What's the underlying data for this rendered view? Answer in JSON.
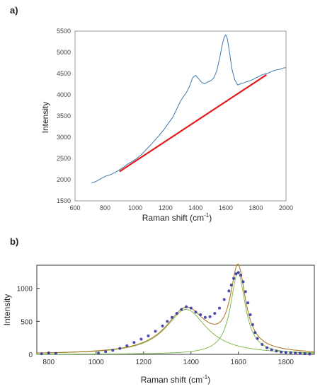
{
  "chart_data": [
    {
      "panel_label": "a)",
      "type": "line",
      "xlabel": "Raman shift (cm",
      "xlabel_sup": "-1",
      "xlabel_end": ")",
      "ylabel": "Intensity",
      "xlim": [
        600,
        2000
      ],
      "ylim": [
        1500,
        5500
      ],
      "xticks": [
        600,
        800,
        1000,
        1200,
        1400,
        1600,
        1800,
        2000
      ],
      "yticks": [
        1500,
        2000,
        2500,
        3000,
        3500,
        4000,
        4500,
        5000,
        5500
      ],
      "grid": false,
      "series": [
        {
          "kind": "spectrum",
          "color": "#3f79b0",
          "x": [
            710,
            740,
            770,
            800,
            830,
            860,
            890,
            920,
            950,
            980,
            1010,
            1040,
            1070,
            1100,
            1130,
            1160,
            1190,
            1220,
            1250,
            1280,
            1300,
            1320,
            1340,
            1360,
            1380,
            1400,
            1420,
            1440,
            1460,
            1480,
            1500,
            1520,
            1540,
            1560,
            1575,
            1590,
            1600,
            1610,
            1625,
            1640,
            1660,
            1680,
            1700,
            1720,
            1740,
            1760,
            1780,
            1800,
            1820,
            1840,
            1860,
            1880,
            1900,
            1920,
            1940,
            1960,
            1980,
            2000
          ],
          "y": [
            1920,
            1960,
            2020,
            2080,
            2110,
            2160,
            2220,
            2290,
            2370,
            2430,
            2500,
            2590,
            2700,
            2810,
            2930,
            3050,
            3180,
            3330,
            3480,
            3700,
            3850,
            3960,
            4060,
            4200,
            4400,
            4460,
            4380,
            4290,
            4260,
            4300,
            4330,
            4390,
            4560,
            4860,
            5150,
            5360,
            5410,
            5330,
            5000,
            4620,
            4350,
            4230,
            4260,
            4280,
            4310,
            4330,
            4360,
            4400,
            4430,
            4470,
            4490,
            4510,
            4540,
            4570,
            4590,
            4600,
            4630,
            4640
          ]
        },
        {
          "kind": "baseline",
          "color": "#e41a1c",
          "x": [
            895,
            1870
          ],
          "y": [
            2190,
            4470
          ]
        }
      ]
    },
    {
      "panel_label": "b)",
      "type": "scatter",
      "xlabel": "Raman shift (cm",
      "xlabel_sup": "-1",
      "xlabel_end": ")",
      "ylabel": "Intensity",
      "xlim": [
        750,
        1920
      ],
      "ylim": [
        0,
        1350
      ],
      "xticks": [
        800,
        1000,
        1200,
        1400,
        1600,
        1800
      ],
      "yticks": [
        0,
        500,
        1000
      ],
      "grid": false,
      "colors": {
        "data": "#2d2d9e",
        "components": "#77b840",
        "envelope": "#b07a2c"
      },
      "components": [
        {
          "center": 1380,
          "amplitude": 680,
          "hwhm": 105
        },
        {
          "center": 1598,
          "amplitude": 1240,
          "hwhm": 38
        }
      ],
      "points": {
        "x": [
          770,
          800,
          830,
          1010,
          1040,
          1070,
          1100,
          1130,
          1160,
          1190,
          1220,
          1250,
          1280,
          1300,
          1320,
          1340,
          1360,
          1380,
          1400,
          1420,
          1440,
          1460,
          1480,
          1500,
          1520,
          1540,
          1560,
          1570,
          1580,
          1590,
          1600,
          1610,
          1620,
          1630,
          1640,
          1650,
          1660,
          1670,
          1680,
          1700,
          1720,
          1740,
          1760,
          1780,
          1800,
          1820,
          1840,
          1860,
          1880,
          1900
        ],
        "y": [
          10,
          20,
          15,
          20,
          40,
          60,
          90,
          130,
          180,
          230,
          280,
          350,
          430,
          500,
          560,
          620,
          680,
          720,
          700,
          640,
          600,
          560,
          570,
          620,
          700,
          830,
          960,
          1050,
          1150,
          1220,
          1240,
          1200,
          1100,
          950,
          780,
          600,
          450,
          330,
          240,
          150,
          100,
          70,
          50,
          35,
          30,
          25,
          20,
          15,
          10,
          5
        ]
      }
    }
  ]
}
